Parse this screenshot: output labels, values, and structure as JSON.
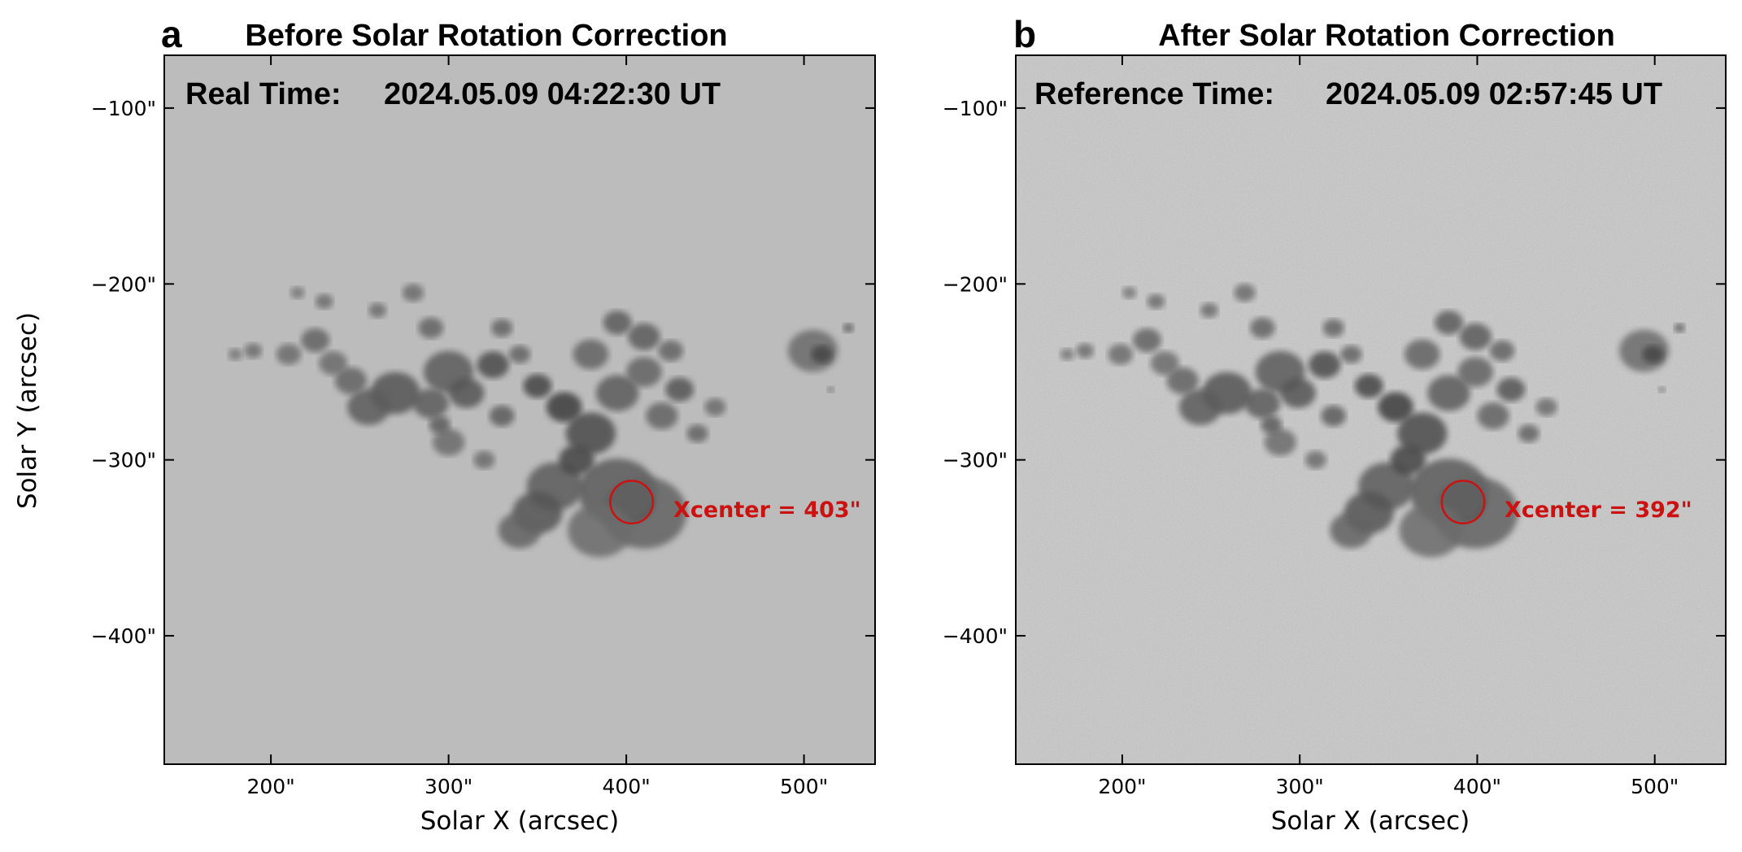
{
  "panels": [
    {
      "letter": "a",
      "title": "Before Solar Rotation Correction",
      "time_label": "Real Time:",
      "time_value": "2024.05.09 04:22:30 UT",
      "annotation": "Xcenter = 403\"",
      "x_center": 403,
      "shift": 0,
      "background": "#bcbcbc"
    },
    {
      "letter": "b",
      "title": "After Solar Rotation Correction",
      "time_label": "Reference Time:",
      "time_value": "2024.05.09 02:57:45 UT",
      "annotation": "Xcenter = 392\"",
      "x_center": 392,
      "shift": -11,
      "background": "#cacaca"
    }
  ],
  "axes": {
    "xlabel": "Solar X (arcsec)",
    "ylabel": "Solar Y (arcsec)",
    "xlim": [
      140,
      540
    ],
    "ylim": [
      -473,
      -70
    ],
    "xticks": [
      200,
      300,
      400,
      500
    ],
    "xtick_labels": [
      "200\"",
      "300\"",
      "400\"",
      "500\""
    ],
    "yticks": [
      -100,
      -200,
      -300,
      -400
    ],
    "ytick_labels": [
      "−100\"",
      "−200\"",
      "−300\"",
      "−400\""
    ]
  },
  "sunspot": {
    "umbra_center": [
      403,
      -324
    ],
    "circle_radius_arcsec": 12
  },
  "colors": {
    "annotation": "#cc1111",
    "axes": "#000000"
  }
}
